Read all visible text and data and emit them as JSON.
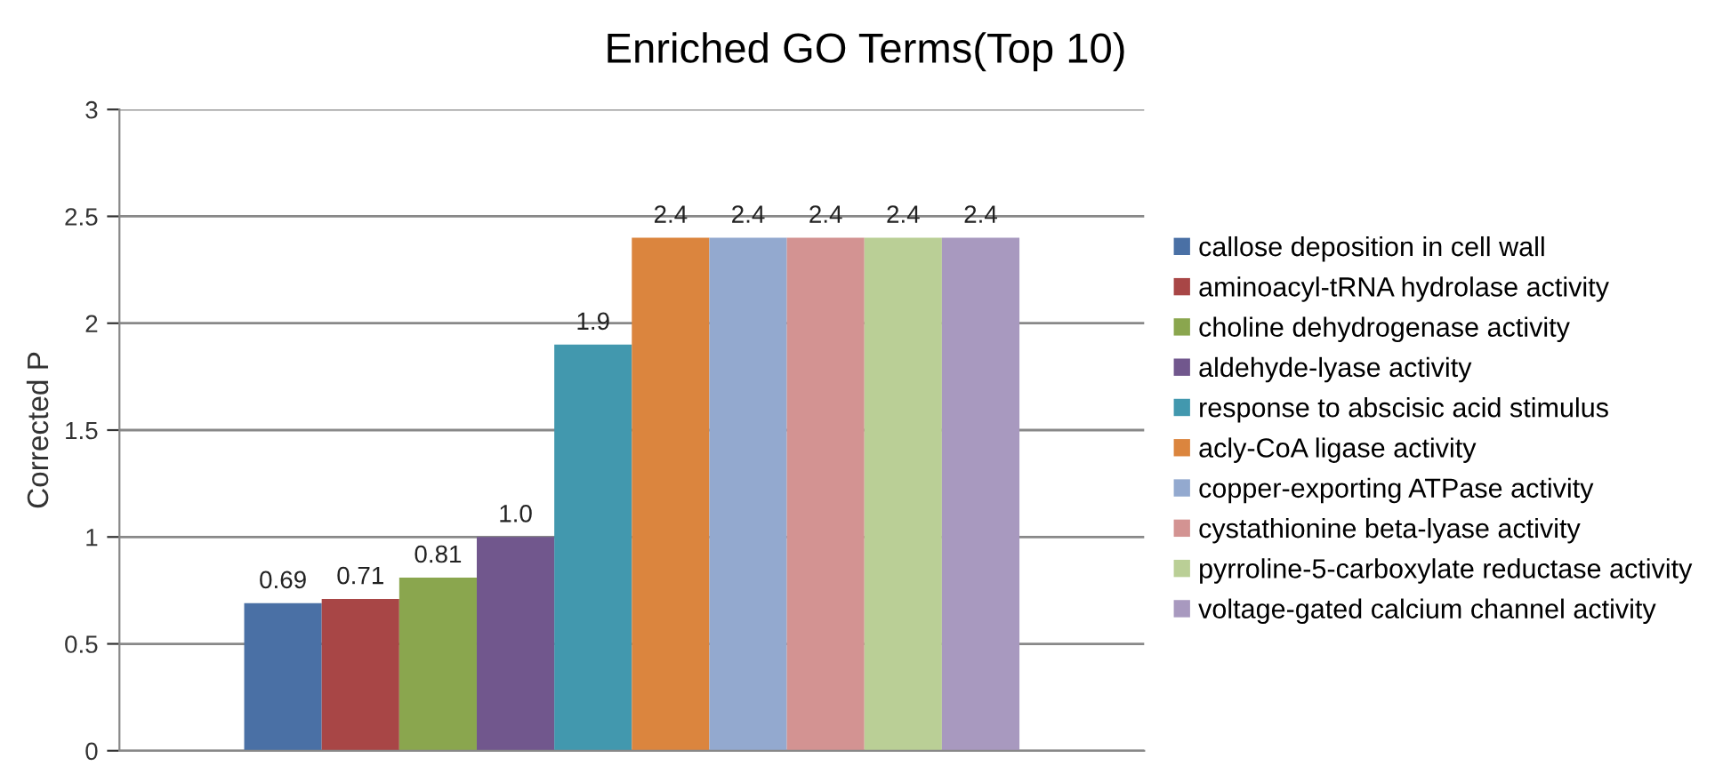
{
  "chart_data": {
    "type": "bar",
    "title": "Enriched GO Terms(Top 10)",
    "ylabel": "Corrected P",
    "categories": [
      null
    ],
    "series": [
      {
        "name": "callose deposition in cell wall",
        "color": "#4a70a5",
        "values": [
          0.69
        ],
        "value_labels": [
          "0.69"
        ]
      },
      {
        "name": "aminoacyl-tRNA hydrolase activity",
        "color": "#a84646",
        "values": [
          0.71
        ],
        "value_labels": [
          "0.71"
        ]
      },
      {
        "name": "choline dehydrogenase activity",
        "color": "#8aa64e",
        "values": [
          0.81
        ],
        "value_labels": [
          "0.81"
        ]
      },
      {
        "name": "aldehyde-lyase activity",
        "color": "#71578d",
        "values": [
          1.0
        ],
        "value_labels": [
          "1.0"
        ]
      },
      {
        "name": "response to abscisic acid stimulus",
        "color": "#4298ae",
        "values": [
          1.9
        ],
        "value_labels": [
          "1.9"
        ]
      },
      {
        "name": "acly-CoA ligase activity",
        "color": "#db853e",
        "values": [
          2.4
        ],
        "value_labels": [
          "2.4"
        ]
      },
      {
        "name": "copper-exporting ATPase activity",
        "color": "#93a9cf",
        "values": [
          2.4
        ],
        "value_labels": [
          "2.4"
        ]
      },
      {
        "name": "cystathionine beta-lyase activity",
        "color": "#d39392",
        "values": [
          2.4
        ],
        "value_labels": [
          "2.4"
        ]
      },
      {
        "name": "pyrroline-5-carboxylate reductase activity",
        "color": "#bacf96",
        "values": [
          2.4
        ],
        "value_labels": [
          "2.4"
        ]
      },
      {
        "name": "voltage-gated calcium channel activity",
        "color": "#a899bf",
        "values": [
          2.4
        ],
        "value_labels": [
          "2.4"
        ]
      }
    ],
    "ylim": [
      0,
      3
    ],
    "yticks": [
      0,
      0.5,
      1,
      1.5,
      2,
      2.5,
      3
    ],
    "grid": "y",
    "legend": "right"
  }
}
